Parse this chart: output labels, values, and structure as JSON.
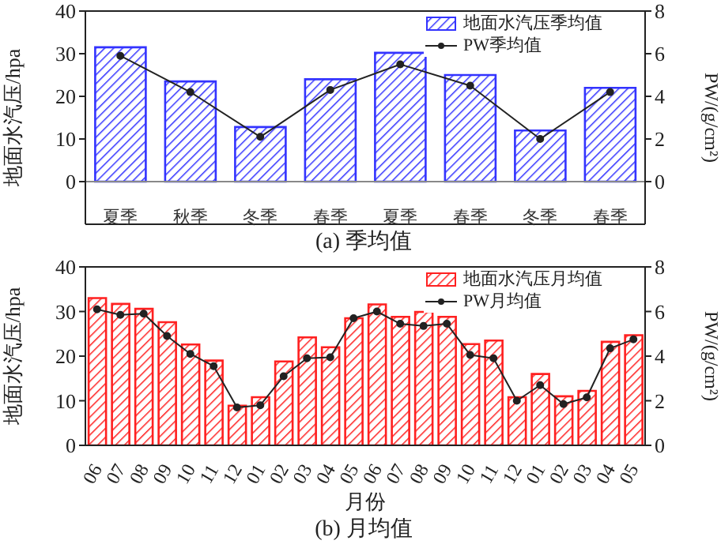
{
  "chart_data": [
    {
      "type": "bar",
      "title": "(a) 季均值",
      "ylabel": "地面水汽压/hpa",
      "y2label": "PW/(g/cm²)",
      "categories": [
        "夏季",
        "秋季",
        "冬季",
        "春季",
        "夏季",
        "春季",
        "冬季",
        "春季"
      ],
      "series": [
        {
          "name": "地面水汽压季均值",
          "color": "#3333ff",
          "values": [
            31.5,
            23.5,
            12.8,
            24,
            30.2,
            25,
            12,
            22
          ]
        },
        {
          "name": "PW季均值",
          "type": "line",
          "axis": "y2",
          "color": "#222222",
          "values": [
            5.9,
            4.2,
            2.1,
            4.3,
            5.5,
            4.5,
            2.0,
            4.2
          ]
        }
      ],
      "ylim": [
        -10,
        40
      ],
      "yticks": [
        0,
        10,
        20,
        30,
        40
      ],
      "y2lim": [
        -2,
        8
      ],
      "y2ticks": [
        0,
        2,
        4,
        6,
        8
      ],
      "ref_lines": [
        {
          "axis": "y",
          "value": 0,
          "color": "#888888"
        }
      ],
      "grid": false,
      "legend": "top right",
      "marker": "circle",
      "line_style": "solid"
    },
    {
      "type": "bar",
      "title": "(b) 月均值",
      "xlabel": "月份",
      "ylabel": "地面水汽压/hpa",
      "y2label": "PW/(g/cm²)",
      "categories": [
        "06",
        "07",
        "08",
        "09",
        "10",
        "11",
        "12",
        "01",
        "02",
        "03",
        "04",
        "05",
        "06",
        "07",
        "08",
        "09",
        "10",
        "11",
        "12",
        "01",
        "02",
        "03",
        "04",
        "05"
      ],
      "series": [
        {
          "name": "地面水汽压月均值",
          "color": "#ff2020",
          "values": [
            33,
            31.7,
            30.6,
            27.6,
            22.6,
            19,
            8.9,
            10.8,
            18.8,
            24.2,
            22,
            28.5,
            31.6,
            28.8,
            29.9,
            28.8,
            22.7,
            23.5,
            10.8,
            16,
            11,
            12.2,
            23.2,
            24.7
          ]
        },
        {
          "name": "PW月均值",
          "type": "line",
          "axis": "y2",
          "color": "#222222",
          "values": [
            6.1,
            5.85,
            5.9,
            4.9,
            4.1,
            3.55,
            1.7,
            1.8,
            3.1,
            3.9,
            3.95,
            5.7,
            6.0,
            5.45,
            5.35,
            5.45,
            4.05,
            3.9,
            2.0,
            2.7,
            1.85,
            2.15,
            4.35,
            4.75
          ]
        }
      ],
      "ylim": [
        0,
        40
      ],
      "yticks": [
        0,
        10,
        20,
        30,
        40
      ],
      "y2lim": [
        0,
        8
      ],
      "y2ticks": [
        0,
        2,
        4,
        6,
        8
      ],
      "grid": false,
      "legend": "top right",
      "marker": "circle",
      "line_style": "solid"
    }
  ]
}
